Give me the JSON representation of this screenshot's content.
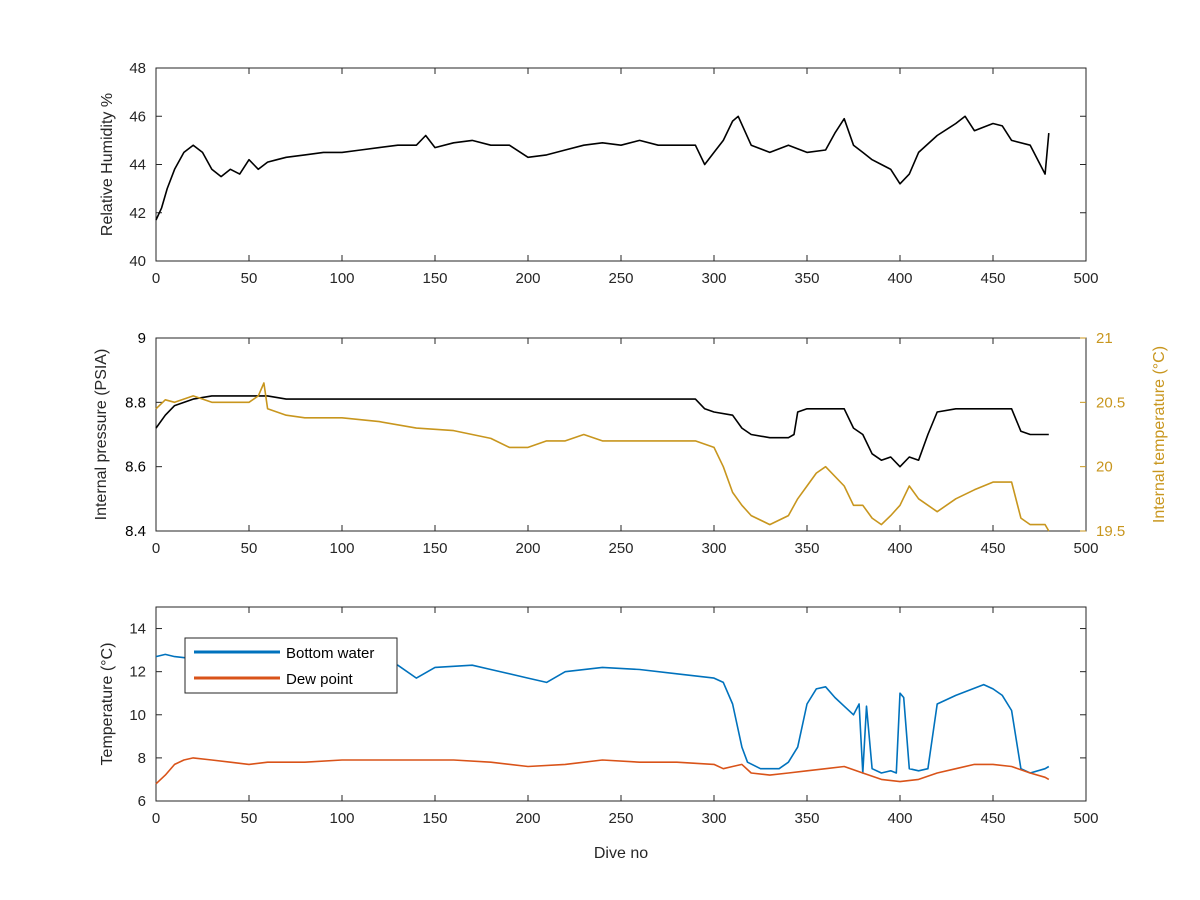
{
  "colors": {
    "humidity": "#000000",
    "pressure": "#000000",
    "internal_temp": "#C8961E",
    "bottom_water": "#0072BD",
    "dew_point": "#D95319",
    "axis": "#262626"
  },
  "chart_data": [
    {
      "type": "line",
      "xlabel": "",
      "ylabel": "Relative Humidity %",
      "xlim": [
        0,
        500
      ],
      "ylim": [
        40,
        48
      ],
      "xticks": [
        0,
        50,
        100,
        150,
        200,
        250,
        300,
        350,
        400,
        450,
        500
      ],
      "yticks": [
        40,
        42,
        44,
        46,
        48
      ],
      "grid": false,
      "series": [
        {
          "color_key": "humidity",
          "x": [
            0,
            3,
            6,
            10,
            15,
            20,
            25,
            30,
            35,
            40,
            45,
            50,
            55,
            60,
            65,
            70,
            80,
            90,
            100,
            110,
            120,
            130,
            140,
            145,
            150,
            160,
            170,
            180,
            190,
            200,
            210,
            220,
            230,
            240,
            250,
            260,
            270,
            280,
            290,
            295,
            300,
            305,
            310,
            313,
            320,
            330,
            340,
            350,
            360,
            365,
            370,
            375,
            380,
            385,
            390,
            395,
            400,
            405,
            410,
            420,
            430,
            435,
            440,
            450,
            455,
            460,
            470,
            478,
            480
          ],
          "y": [
            41.7,
            42.2,
            43.0,
            43.8,
            44.5,
            44.8,
            44.5,
            43.8,
            43.5,
            43.8,
            43.6,
            44.2,
            43.8,
            44.1,
            44.2,
            44.3,
            44.4,
            44.5,
            44.5,
            44.6,
            44.7,
            44.8,
            44.8,
            45.2,
            44.7,
            44.9,
            45.0,
            44.8,
            44.8,
            44.3,
            44.4,
            44.6,
            44.8,
            44.9,
            44.8,
            45.0,
            44.8,
            44.8,
            44.8,
            44.0,
            44.5,
            45.0,
            45.8,
            46.0,
            44.8,
            44.5,
            44.8,
            44.5,
            44.6,
            45.3,
            45.9,
            44.8,
            44.5,
            44.2,
            44.0,
            43.8,
            43.2,
            43.6,
            44.5,
            45.2,
            45.7,
            46.0,
            45.4,
            45.7,
            45.6,
            45.0,
            44.8,
            43.6,
            45.3
          ]
        }
      ]
    },
    {
      "type": "line",
      "xlabel": "",
      "ylabel": "Internal pressure (PSIA)",
      "y2label": "Internal temperature (°C)",
      "xlim": [
        0,
        500
      ],
      "ylim": [
        8.4,
        9
      ],
      "y2lim": [
        19.5,
        21
      ],
      "xticks": [
        0,
        50,
        100,
        150,
        200,
        250,
        300,
        350,
        400,
        450,
        500
      ],
      "yticks": [
        8.4,
        8.6,
        8.8,
        9
      ],
      "ytick_labels": [
        "8.4",
        "8.6",
        "8.8",
        "9"
      ],
      "y2ticks": [
        19.5,
        20,
        20.5,
        21
      ],
      "y2tick_labels": [
        "19.5",
        "20",
        "20.5",
        "21"
      ],
      "grid": false,
      "series": [
        {
          "axis": "left",
          "color_key": "pressure",
          "x": [
            0,
            5,
            10,
            20,
            30,
            50,
            60,
            70,
            100,
            150,
            200,
            250,
            270,
            290,
            295,
            300,
            310,
            315,
            320,
            330,
            340,
            343,
            345,
            350,
            360,
            370,
            375,
            380,
            385,
            390,
            395,
            400,
            405,
            410,
            415,
            420,
            430,
            440,
            450,
            460,
            465,
            470,
            478,
            480
          ],
          "y": [
            8.72,
            8.76,
            8.79,
            8.81,
            8.82,
            8.82,
            8.82,
            8.81,
            8.81,
            8.81,
            8.81,
            8.81,
            8.81,
            8.81,
            8.78,
            8.77,
            8.76,
            8.72,
            8.7,
            8.69,
            8.69,
            8.7,
            8.77,
            8.78,
            8.78,
            8.78,
            8.72,
            8.7,
            8.64,
            8.62,
            8.63,
            8.6,
            8.63,
            8.62,
            8.7,
            8.77,
            8.78,
            8.78,
            8.78,
            8.78,
            8.71,
            8.7,
            8.7,
            8.7
          ]
        },
        {
          "axis": "right",
          "color_key": "internal_temp",
          "x": [
            0,
            5,
            10,
            20,
            30,
            40,
            50,
            55,
            58,
            60,
            70,
            80,
            100,
            120,
            140,
            160,
            180,
            190,
            200,
            210,
            220,
            230,
            240,
            250,
            260,
            270,
            280,
            290,
            300,
            305,
            310,
            315,
            320,
            330,
            340,
            345,
            350,
            355,
            360,
            370,
            375,
            380,
            385,
            390,
            395,
            400,
            405,
            410,
            420,
            430,
            440,
            450,
            455,
            460,
            465,
            470,
            478,
            480
          ],
          "y": [
            20.45,
            20.52,
            20.5,
            20.55,
            20.5,
            20.5,
            20.5,
            20.55,
            20.65,
            20.45,
            20.4,
            20.38,
            20.38,
            20.35,
            20.3,
            20.28,
            20.22,
            20.15,
            20.15,
            20.2,
            20.2,
            20.25,
            20.2,
            20.2,
            20.2,
            20.2,
            20.2,
            20.2,
            20.15,
            20.0,
            19.8,
            19.7,
            19.62,
            19.55,
            19.62,
            19.75,
            19.85,
            19.95,
            20.0,
            19.85,
            19.7,
            19.7,
            19.6,
            19.55,
            19.62,
            19.7,
            19.85,
            19.75,
            19.65,
            19.75,
            19.82,
            19.88,
            19.88,
            19.88,
            19.6,
            19.55,
            19.55,
            19.5
          ]
        }
      ]
    },
    {
      "type": "line",
      "xlabel": "Dive no",
      "ylabel": "Temperature (°C)",
      "xlim": [
        0,
        500
      ],
      "ylim": [
        6,
        15
      ],
      "xticks": [
        0,
        50,
        100,
        150,
        200,
        250,
        300,
        350,
        400,
        450,
        500
      ],
      "yticks": [
        6,
        8,
        10,
        12,
        14
      ],
      "grid": false,
      "legend": "top-left",
      "series": [
        {
          "name": "Bottom water",
          "color_key": "bottom_water",
          "x": [
            0,
            5,
            10,
            20,
            40,
            60,
            80,
            100,
            120,
            130,
            140,
            150,
            170,
            180,
            200,
            210,
            220,
            240,
            260,
            280,
            300,
            305,
            310,
            315,
            318,
            325,
            335,
            340,
            345,
            350,
            355,
            360,
            365,
            370,
            375,
            378,
            380,
            382,
            385,
            390,
            395,
            398,
            400,
            402,
            405,
            410,
            415,
            420,
            430,
            445,
            450,
            455,
            460,
            465,
            470,
            478,
            480
          ],
          "y": [
            12.7,
            12.8,
            12.7,
            12.6,
            12.5,
            12.6,
            12.5,
            12.5,
            12.4,
            12.3,
            11.7,
            12.2,
            12.3,
            12.1,
            11.7,
            11.5,
            12.0,
            12.2,
            12.1,
            11.9,
            11.7,
            11.5,
            10.5,
            8.5,
            7.8,
            7.5,
            7.5,
            7.8,
            8.5,
            10.5,
            11.2,
            11.3,
            10.8,
            10.4,
            10.0,
            10.5,
            7.3,
            10.4,
            7.5,
            7.3,
            7.4,
            7.3,
            11.0,
            10.8,
            7.5,
            7.4,
            7.5,
            10.5,
            10.9,
            11.4,
            11.2,
            10.9,
            10.2,
            7.5,
            7.3,
            7.5,
            7.6
          ]
        },
        {
          "name": "Dew point",
          "color_key": "dew_point",
          "x": [
            0,
            5,
            10,
            15,
            20,
            30,
            40,
            50,
            60,
            80,
            100,
            120,
            140,
            160,
            180,
            200,
            220,
            240,
            260,
            280,
            300,
            305,
            310,
            315,
            320,
            330,
            340,
            350,
            360,
            370,
            380,
            390,
            400,
            410,
            420,
            430,
            440,
            450,
            460,
            470,
            478,
            480
          ],
          "y": [
            6.8,
            7.2,
            7.7,
            7.9,
            8.0,
            7.9,
            7.8,
            7.7,
            7.8,
            7.8,
            7.9,
            7.9,
            7.9,
            7.9,
            7.8,
            7.6,
            7.7,
            7.9,
            7.8,
            7.8,
            7.7,
            7.5,
            7.6,
            7.7,
            7.3,
            7.2,
            7.3,
            7.4,
            7.5,
            7.6,
            7.3,
            7.0,
            6.9,
            7.0,
            7.3,
            7.5,
            7.7,
            7.7,
            7.6,
            7.3,
            7.1,
            7.0
          ]
        }
      ]
    }
  ]
}
